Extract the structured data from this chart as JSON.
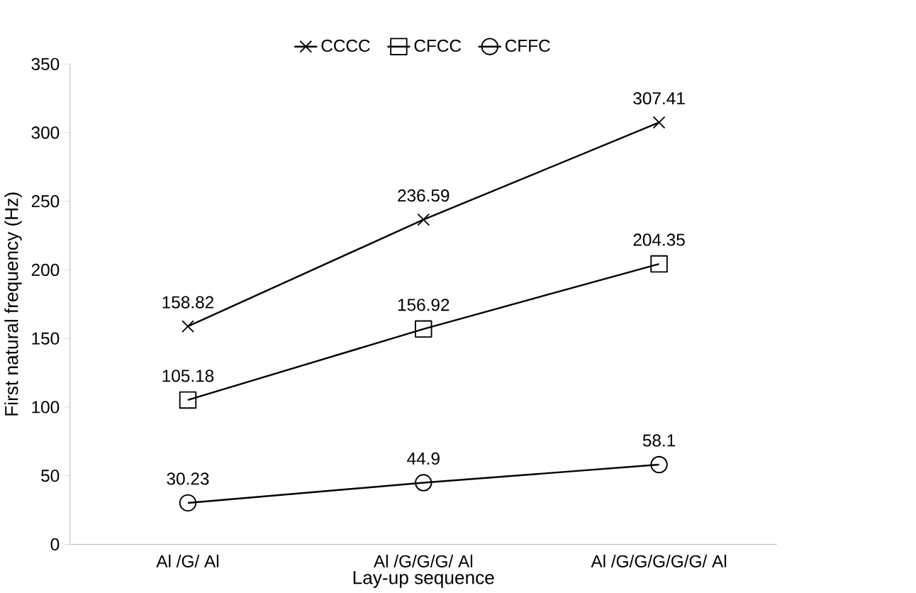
{
  "chart_data": {
    "type": "line",
    "xlabel": "Lay-up sequence",
    "ylabel": "First natural frequency (Hz)",
    "categories": [
      "Al /G/ Al",
      "Al /G/G/G/ Al",
      "Al /G/G/G/G/G/ Al"
    ],
    "series": [
      {
        "name": "CCCC",
        "color": "#000000",
        "marker": "cross",
        "values": [
          158.82,
          236.59,
          307.41
        ]
      },
      {
        "name": "CFCC",
        "color": "#000000",
        "marker": "square",
        "values": [
          105.18,
          156.92,
          204.35
        ]
      },
      {
        "name": "CFFC",
        "color": "#000000",
        "marker": "circle",
        "values": [
          30.23,
          44.9,
          58.1
        ]
      }
    ],
    "ylim": [
      0,
      350
    ],
    "yticks": [
      0,
      50,
      100,
      150,
      200,
      250,
      300,
      350
    ],
    "data_labels": true,
    "legend": "top",
    "grid": false,
    "line_style": "solid"
  }
}
